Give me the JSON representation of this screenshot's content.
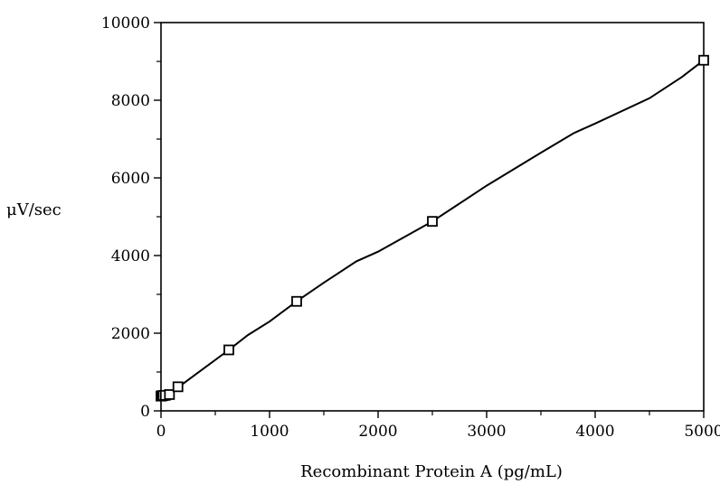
{
  "chart_data": {
    "type": "scatter",
    "title": "",
    "xlabel": "Recombinant Protein A (pg/mL)",
    "ylabel": "μV/sec",
    "xlim": [
      0,
      5000
    ],
    "ylim": [
      0,
      10000
    ],
    "x_ticks": [
      0,
      1000,
      2000,
      3000,
      4000,
      5000
    ],
    "y_ticks": [
      0,
      2000,
      4000,
      6000,
      8000,
      10000
    ],
    "grid": false,
    "legend": "none",
    "series": [
      {
        "marker": "open-square",
        "x": [
          0,
          5,
          10,
          20,
          40,
          78,
          156,
          625,
          1250,
          2500,
          5000
        ],
        "y": [
          380,
          385,
          390,
          395,
          400,
          420,
          620,
          1570,
          2820,
          4880,
          9030
        ]
      }
    ],
    "fit_curve": {
      "style": "smooth-line",
      "x": [
        0,
        78,
        156,
        300,
        625,
        800,
        1000,
        1250,
        1500,
        1800,
        2000,
        2500,
        3000,
        3500,
        3800,
        4000,
        4500,
        4800,
        5000
      ],
      "y": [
        380,
        430,
        600,
        900,
        1570,
        1950,
        2300,
        2820,
        3300,
        3850,
        4100,
        4880,
        5800,
        6650,
        7150,
        7400,
        8050,
        8600,
        9030
      ]
    }
  }
}
